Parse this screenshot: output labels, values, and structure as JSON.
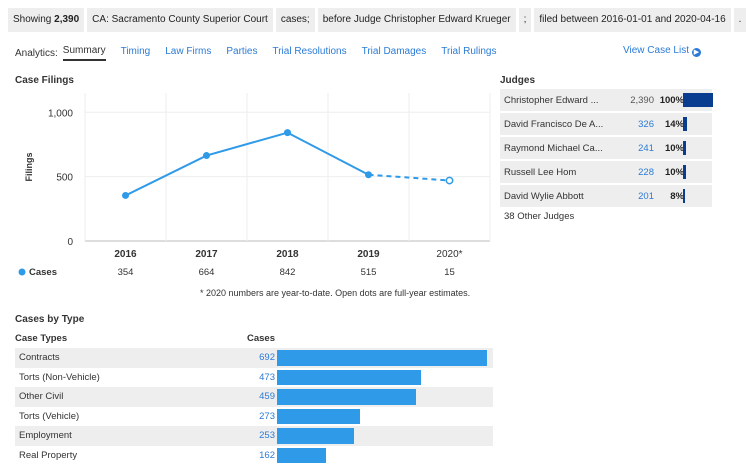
{
  "filters": {
    "showing_label": "Showing",
    "showing_count": "2,390",
    "court": "CA: Sacramento County Superior Court",
    "cases_word": "cases;",
    "judge_filter": "before Judge Christopher Edward Krueger",
    "sep": ";",
    "date_filter": "filed between 2016-01-01 and 2020-04-16",
    "end": "."
  },
  "tabs": {
    "label": "Analytics:",
    "items": [
      "Summary",
      "Timing",
      "Law Firms",
      "Parties",
      "Trial Resolutions",
      "Trial Damages",
      "Trial Rulings"
    ],
    "active": "Summary",
    "view_case_list": "View Case List"
  },
  "case_filings": {
    "title": "Case Filings",
    "footnote": "* 2020 numbers are year-to-date. Open dots are full-year estimates."
  },
  "chart_data": {
    "type": "line",
    "title": "Case Filings",
    "ylabel": "Filings",
    "x": [
      "2016",
      "2017",
      "2018",
      "2019",
      "2020*"
    ],
    "series": [
      {
        "name": "Cases",
        "values": [
          354,
          664,
          842,
          515,
          15
        ],
        "plot_values": [
          354,
          664,
          842,
          515,
          470
        ],
        "estimate_last": true,
        "color": "#2f9ae8"
      }
    ],
    "yticks": [
      "0",
      "500",
      "1,000"
    ],
    "ytick_values": [
      0,
      500,
      1000
    ],
    "ylim": [
      0,
      1150
    ],
    "grid": true
  },
  "judges": {
    "title": "Judges",
    "rows": [
      {
        "name": "Christopher Edward ...",
        "count": "2,390",
        "pct": "100%",
        "fraction": 1.0,
        "link": false
      },
      {
        "name": "David Francisco De A...",
        "count": "326",
        "pct": "14%",
        "fraction": 0.14,
        "link": true
      },
      {
        "name": "Raymond Michael Ca...",
        "count": "241",
        "pct": "10%",
        "fraction": 0.1,
        "link": true
      },
      {
        "name": "Russell Lee Hom",
        "count": "228",
        "pct": "10%",
        "fraction": 0.1,
        "link": true
      },
      {
        "name": "David Wylie Abbott",
        "count": "201",
        "pct": "8%",
        "fraction": 0.08,
        "link": true
      }
    ],
    "other": "38 Other Judges",
    "bar_color": "#0a3d8f"
  },
  "cases_by_type": {
    "title": "Cases by Type",
    "col_type": "Case Types",
    "col_cases": "Cases",
    "rows": [
      {
        "type": "Contracts",
        "count": "692",
        "value": 692
      },
      {
        "type": "Torts (Non-Vehicle)",
        "count": "473",
        "value": 473
      },
      {
        "type": "Other Civil",
        "count": "459",
        "value": 459
      },
      {
        "type": "Torts (Vehicle)",
        "count": "273",
        "value": 273
      },
      {
        "type": "Employment",
        "count": "253",
        "value": 253
      },
      {
        "type": "Real Property",
        "count": "162",
        "value": 162
      }
    ],
    "bar_color": "#2f9ae8"
  }
}
